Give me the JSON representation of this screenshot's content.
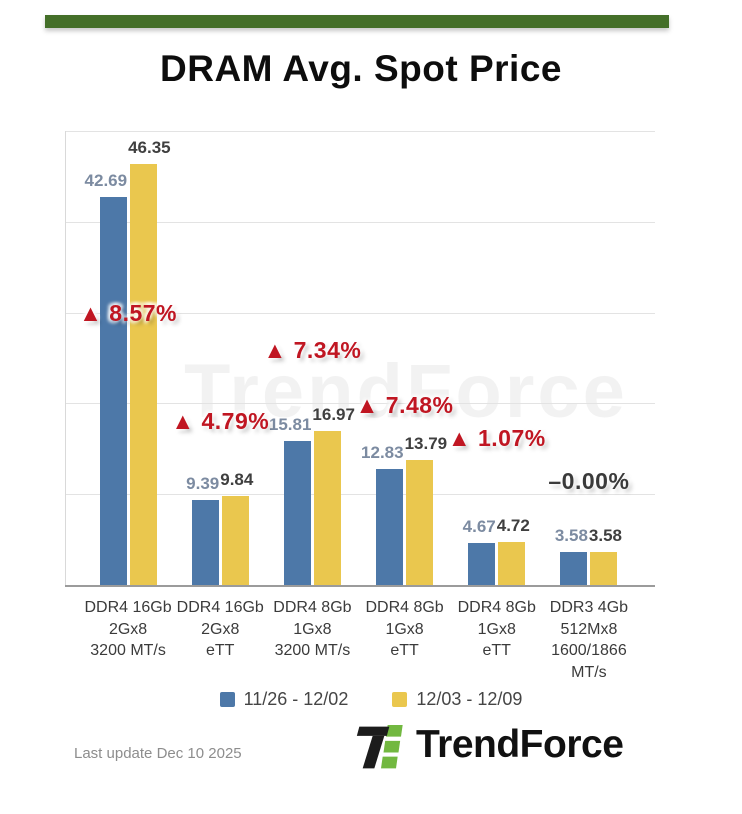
{
  "page": {
    "title": "DRAM Avg. Spot Price",
    "top_bar_color": "#446f29",
    "watermark": "TrendForce",
    "footer": {
      "last_update": "Last update Dec 10 2025",
      "brand": "TrendForce"
    }
  },
  "chart_data": {
    "type": "bar",
    "title": "DRAM Avg. Spot Price",
    "xlabel": "",
    "ylabel": "",
    "ylim": [
      0,
      50
    ],
    "grid": true,
    "legend_position": "bottom",
    "categories": [
      "DDR4 16Gb\n2Gx8\n3200 MT/s",
      "DDR4 16Gb\n2Gx8\neTT",
      "DDR4 8Gb\n1Gx8\n3200 MT/s",
      "DDR4 8Gb\n1Gx8\neTT",
      "DDR4 8Gb\n1Gx8\neTT",
      "DDR3 4Gb\n512Mx8\n1600/1866\nMT/s"
    ],
    "series": [
      {
        "name": "11/26 - 12/02",
        "color": "#4d78a8",
        "label_color": "#7c8ba1",
        "values": [
          42.69,
          9.39,
          15.81,
          12.83,
          4.67,
          3.58
        ]
      },
      {
        "name": "12/03 - 12/09",
        "color": "#eac74e",
        "label_color": "#3f3f3f",
        "values": [
          46.35,
          9.84,
          16.97,
          13.79,
          4.72,
          3.58
        ]
      }
    ],
    "annotations": [
      {
        "text": "▲ 8.57%",
        "color": "#c01622",
        "y": 29.7
      },
      {
        "text": "▲ 4.79%",
        "color": "#c01622",
        "y": 17.8
      },
      {
        "text": "▲ 7.34%",
        "color": "#c01622",
        "y": 25.7
      },
      {
        "text": "▲ 7.48%",
        "color": "#c01622",
        "y": 19.6
      },
      {
        "text": "▲ 1.07%",
        "color": "#c01622",
        "y": 16.0
      },
      {
        "text": "–0.00%",
        "color": "#3a3a3a",
        "y": 11.2
      }
    ]
  }
}
